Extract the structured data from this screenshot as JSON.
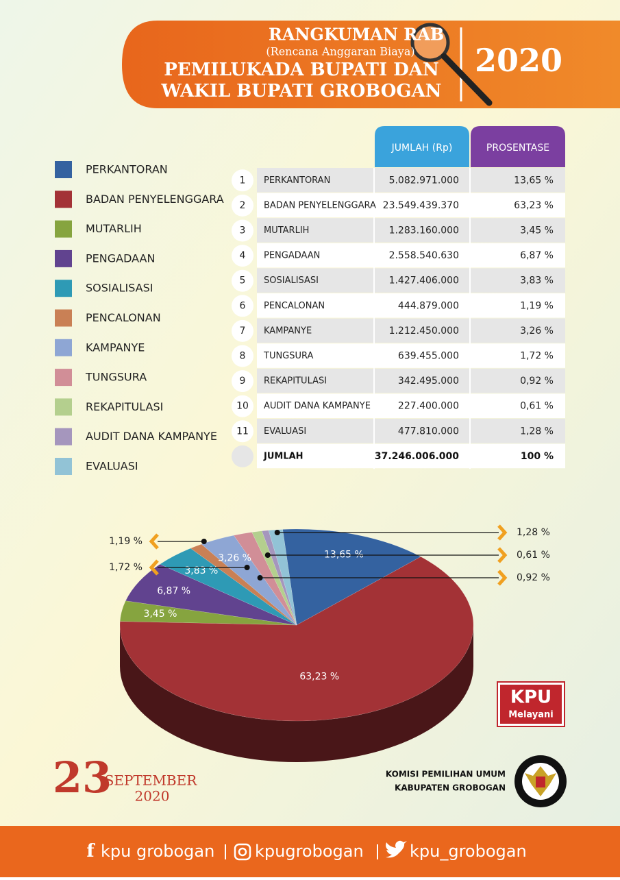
{
  "header": {
    "title1": "RANGKUMAN RAB",
    "subtitle": "(Rencana Anggaran Biaya)",
    "title2": "PEMILUKADA BUPATI DAN",
    "title3": "WAKIL BUPATI GROBOGAN",
    "year": "2020"
  },
  "table": {
    "columns": [
      "JUMLAH (Rp)",
      "PROSENTASE"
    ],
    "rows": [
      [
        "1",
        "5.082.971.000"
      ],
      [
        "2",
        "23.549.439.370"
      ],
      [
        "3",
        "1.283.160.000"
      ],
      [
        "4",
        "2.558.540.630"
      ],
      [
        "5",
        "1.427.406.000"
      ],
      [
        "6",
        "444.879.000"
      ],
      [
        "7",
        "1.212.450.000"
      ],
      [
        "8",
        "639.455.000"
      ],
      [
        "9",
        "342.495.000"
      ],
      [
        "10",
        "227.400.000"
      ],
      [
        "11",
        "477.810.000"
      ]
    ],
    "total": [
      "JUMLAH",
      "37.246.006.000",
      "100 %"
    ]
  },
  "chart_data": {
    "type": "pie",
    "categories": [
      "PERKANTORAN",
      "BADAN PENYELENGGARA",
      "MUTARLIH",
      "PENGADAAN",
      "SOSIALISASI",
      "PENCALONAN",
      "KAMPANYE",
      "TUNGSURA",
      "REKAPITULASI",
      "AUDIT DANA KAMPANYE",
      "EVALUASI"
    ],
    "values": [
      13.65,
      63.23,
      3.45,
      6.87,
      3.83,
      1.19,
      3.26,
      1.72,
      0.92,
      0.61,
      1.28
    ],
    "value_labels": [
      "13,65 %",
      "63,23 %",
      "3,45 %",
      "6,87 %",
      "3,83 %",
      "1,19 %",
      "3,26 %",
      "1,72 %",
      "0,92 %",
      "0,61 %",
      "1,28 %"
    ],
    "colors": [
      "#3462a0",
      "#a33236",
      "#86a43f",
      "#61438f",
      "#2e9ab5",
      "#c98055",
      "#8ea6d4",
      "#d18e97",
      "#b4cf8e",
      "#a596bd",
      "#92c3d6"
    ]
  },
  "date": {
    "day": "23",
    "month": "SEPTEMBER",
    "year": "2020"
  },
  "logo": {
    "kpu": "KPU",
    "tagline": "Melayani"
  },
  "org": {
    "line1": "KOMISI PEMILIHAN UMUM",
    "line2": "KABUPATEN GROBOGAN"
  },
  "footer": {
    "facebook": "kpu grobogan",
    "instagram": "kpugrobogan",
    "twitter": "kpu_grobogan"
  }
}
